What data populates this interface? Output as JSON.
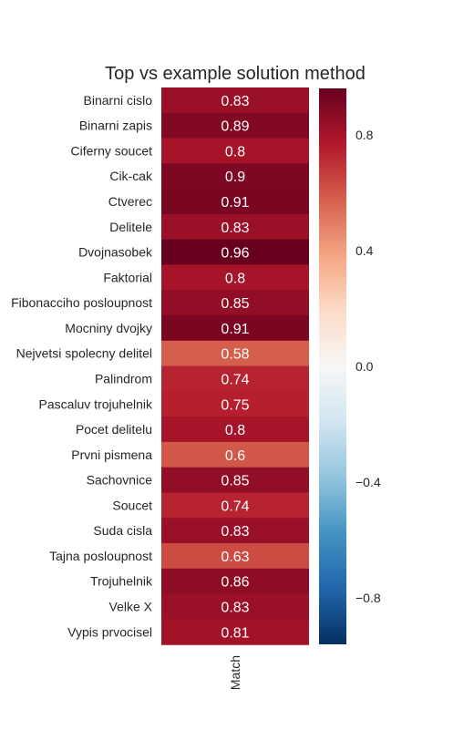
{
  "chart_data": {
    "type": "heatmap",
    "title": "Top vs example solution method",
    "xlabel": "",
    "ylabel": "",
    "columns": [
      "Match"
    ],
    "rows": [
      "Binarni cislo",
      "Binarni zapis",
      "Ciferny soucet",
      "Cik-cak",
      "Ctverec",
      "Delitele",
      "Dvojnasobek",
      "Faktorial",
      "Fibonacciho posloupnost",
      "Mocniny dvojky",
      "Nejvetsi spolecny delitel",
      "Palindrom",
      "Pascaluv trojuhelnik",
      "Pocet delitelu",
      "Prvni pismena",
      "Sachovnice",
      "Soucet",
      "Suda cisla",
      "Tajna posloupnost",
      "Trojuhelnik",
      "Velke X",
      "Vypis prvocisel"
    ],
    "values": [
      0.83,
      0.89,
      0.8,
      0.9,
      0.91,
      0.83,
      0.96,
      0.8,
      0.85,
      0.91,
      0.58,
      0.74,
      0.75,
      0.8,
      0.6,
      0.85,
      0.74,
      0.83,
      0.63,
      0.86,
      0.83,
      0.81
    ],
    "colorbar": {
      "colormap": "RdBu_r",
      "vmin": -0.96,
      "vmax": 0.96,
      "ticks": [
        0.8,
        0.4,
        0.0,
        -0.4,
        -0.8
      ],
      "tick_labels": [
        "0.8",
        "0.4",
        "0.0",
        "−0.4",
        "−0.8"
      ]
    },
    "grid": false
  }
}
